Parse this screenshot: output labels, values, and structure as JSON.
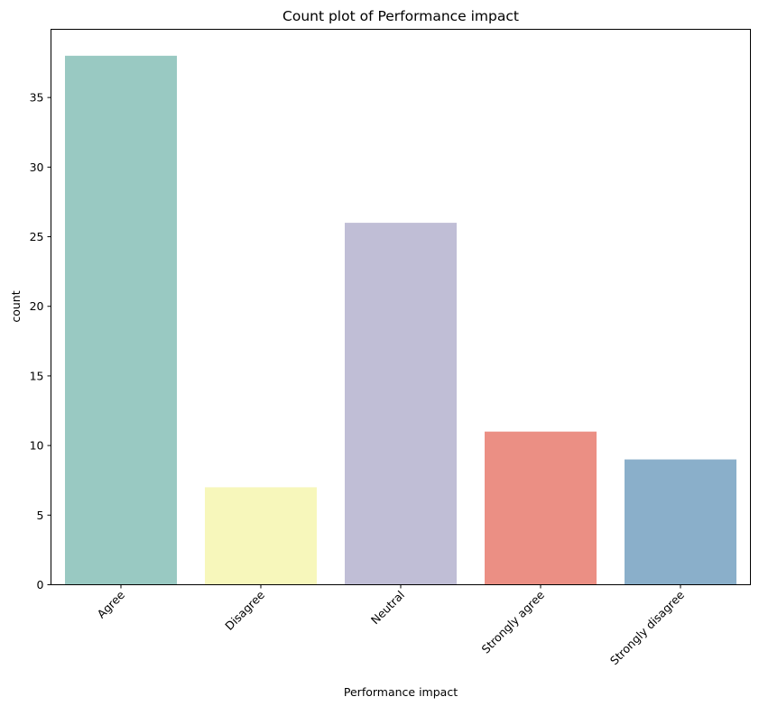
{
  "chart_data": {
    "type": "bar",
    "title": "Count plot of Performance impact",
    "xlabel": "Performance impact",
    "ylabel": "count",
    "categories": [
      "Agree",
      "Disagree",
      "Neutral",
      "Strongly agree",
      "Strongly disagree"
    ],
    "values": [
      38,
      7,
      26,
      11,
      9
    ],
    "colors": [
      "#99c9c2",
      "#f7f7bb",
      "#c0bed6",
      "#eb8f84",
      "#8aafca"
    ],
    "ylim": [
      0,
      39.9
    ],
    "yticks": [
      0,
      5,
      10,
      15,
      20,
      25,
      30,
      35
    ],
    "grid": false,
    "x_tick_rotation": -45
  }
}
